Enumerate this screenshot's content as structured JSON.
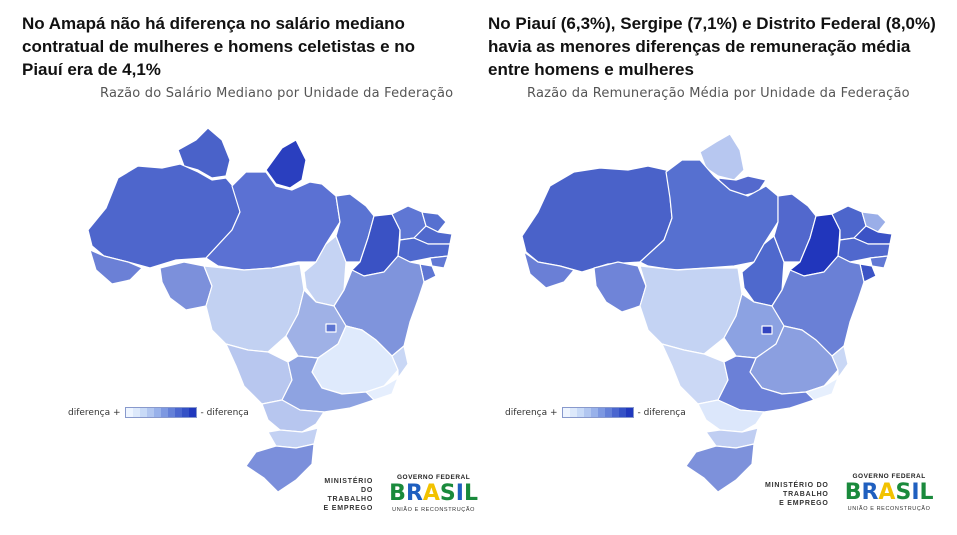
{
  "left_panel": {
    "headline": "No Amapá não há diferença no salário mediano contratual de mulheres e homens celetistas e no Piauí era de 4,1%",
    "map_title": "Razão do Salário Mediano por Unidade da Federação",
    "legend": {
      "left_label": "diferença +",
      "right_label": "- diferença"
    }
  },
  "right_panel": {
    "headline": "No Piauí (6,3%), Sergipe (7,1%) e Distrito Federal (8,0%) havia as menores diferenças de remuneração média entre homens e mulheres",
    "map_title": "Razão da Remuneração Média por Unidade da Federação",
    "legend": {
      "left_label": "diferença +",
      "right_label": "- diferença"
    }
  },
  "logos": {
    "ministry_lines": [
      "MINISTÉRIO DO",
      "TRABALHO",
      "E EMPREGO"
    ],
    "gov_top": "GOVERNO FEDERAL",
    "gov_word": "BRASIL",
    "gov_bottom": "UNIÃO E RECONSTRUÇÃO"
  },
  "legend_colors": [
    "#eef5ff",
    "#dde9fb",
    "#c8daf7",
    "#b1c6f0",
    "#98b1ea",
    "#7d98e1",
    "#6480d8",
    "#4a66cf",
    "#3451c6",
    "#2038bd"
  ],
  "map_colors": {
    "AM": "#4e66cc",
    "PA": "#5b71d3",
    "RR": "#4a62c9",
    "AP": "#2a3fbf",
    "AC": "#6b80d6",
    "RO": "#7c90db",
    "MT": "#c2d1f2",
    "TO": "#c5d3f3",
    "MA": "#5a73d2",
    "PI": "#3a52c4",
    "CE": "#5f77d4",
    "RN": "#5670d0",
    "PB": "#5069cd",
    "PE": "#4f69cd",
    "AL": "#6178d4",
    "SE": "#5e76d3",
    "BA": "#7f94dc",
    "GO": "#9fb1e6",
    "DF": "#5d75d2",
    "MG": "#dfeafc",
    "ES": "#c9d7f5",
    "RJ": "#e5eefd",
    "SP": "#8ea3e1",
    "MS": "#b8c7ef",
    "PR": "#b7c6ef",
    "SC": "#c3d1f3",
    "RS": "#7b8fdb"
  },
  "map_colors_right": {
    "AM": "#4a62c9",
    "PA": "#5670d0",
    "RR": "#b7c7f0",
    "AP": "#5469cd",
    "AC": "#6a7fd6",
    "RO": "#6f84d8",
    "MT": "#c4d3f3",
    "TO": "#4f69cd",
    "MA": "#5268cd",
    "PI": "#2136bc",
    "CE": "#4d66cc",
    "RN": "#9aaee8",
    "PB": "#3b53c6",
    "PE": "#5068cd",
    "AL": "#6178d4",
    "SE": "#3b53c5",
    "BA": "#6a80d6",
    "GO": "#8ca2e2",
    "DF": "#3345c0",
    "MG": "#8b9fe0",
    "ES": "#c9d7f5",
    "RJ": "#e6effd",
    "SP": "#6b80d7",
    "MS": "#cbd8f5",
    "PR": "#dce7fb",
    "SC": "#c0cef2",
    "RS": "#7d91db"
  }
}
